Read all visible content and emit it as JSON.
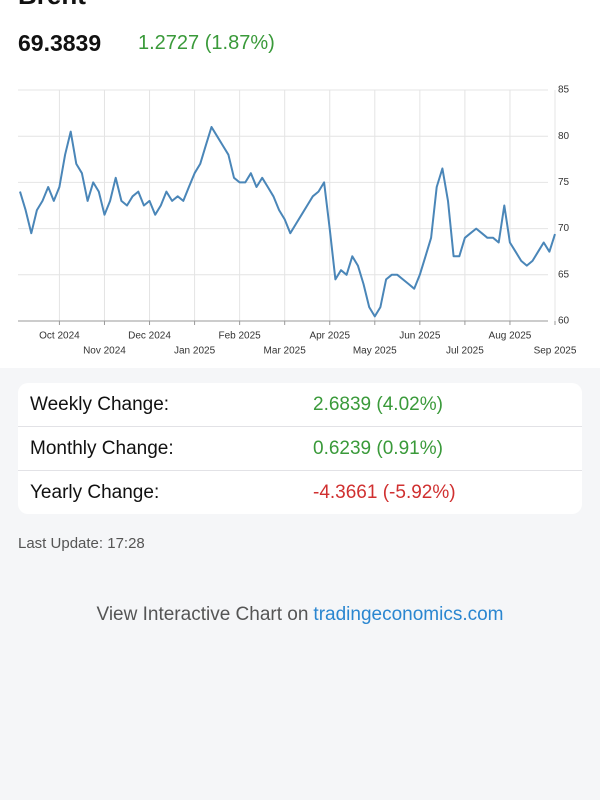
{
  "header": {
    "title": "Brent",
    "price": "69.3839",
    "change": "1.2727 (1.87%)"
  },
  "chart_data": {
    "type": "line",
    "categories": [
      null,
      null,
      null,
      null,
      null,
      null,
      null,
      "Oct 2024",
      null,
      null,
      null,
      null,
      null,
      null,
      null,
      "Nov 2024",
      null,
      null,
      null,
      null,
      null,
      null,
      null,
      "Dec 2024",
      null,
      null,
      null,
      null,
      null,
      null,
      null,
      "Jan 2025",
      null,
      null,
      null,
      null,
      null,
      null,
      null,
      "Feb 2025",
      null,
      null,
      null,
      null,
      null,
      null,
      null,
      "Mar 2025",
      null,
      null,
      null,
      null,
      null,
      null,
      null,
      "Apr 2025",
      null,
      null,
      null,
      null,
      null,
      null,
      null,
      "May 2025",
      null,
      null,
      null,
      null,
      null,
      null,
      null,
      "Jun 2025",
      null,
      null,
      null,
      null,
      null,
      null,
      null,
      "Jul 2025",
      null,
      null,
      null,
      null,
      null,
      null,
      null,
      "Aug 2025",
      null,
      null,
      null,
      null,
      null,
      null,
      null,
      "Sep 2025"
    ],
    "series": [
      {
        "color": "#4a86b8",
        "values": [
          74,
          72,
          69.5,
          72,
          73,
          74.5,
          73,
          74.5,
          78,
          80.5,
          77,
          76,
          73,
          75,
          74,
          71.5,
          73,
          75.5,
          73,
          72.5,
          73.5,
          74,
          72.5,
          73,
          71.5,
          72.5,
          74,
          73,
          73.5,
          73,
          74.5,
          76,
          77,
          79,
          81,
          80,
          79,
          78,
          75.5,
          75,
          75,
          76,
          74.5,
          75.5,
          74.5,
          73.5,
          72,
          71,
          69.5,
          70.5,
          71.5,
          72.5,
          73.5,
          74,
          75,
          70,
          64.5,
          65.5,
          65,
          67,
          66,
          64,
          61.5,
          60.5,
          61.5,
          64.5,
          65,
          65,
          64.5,
          64,
          63.5,
          65,
          67,
          69,
          74.5,
          76.5,
          73,
          67,
          67,
          69,
          69.5,
          70,
          69.5,
          69,
          69,
          68.5,
          72.5,
          68.5,
          67.5,
          66.5,
          66,
          66.5,
          67.5,
          68.5,
          67.5,
          69.4
        ]
      }
    ],
    "ylim": [
      60,
      85
    ],
    "yticks": [
      60,
      65,
      70,
      75,
      80,
      85
    ],
    "grid": true
  },
  "stats": [
    {
      "label": "Weekly Change:",
      "value": "2.6839 (4.02%)"
    },
    {
      "label": "Monthly Change:",
      "value": "0.6239 (0.91%)"
    },
    {
      "label": "Yearly Change:",
      "value": "-4.3661 (-5.92%)"
    }
  ],
  "last_update": "Last Update: 17:28",
  "footer": {
    "text": "View Interactive Chart on",
    "link": "tradingeconomics.com"
  }
}
